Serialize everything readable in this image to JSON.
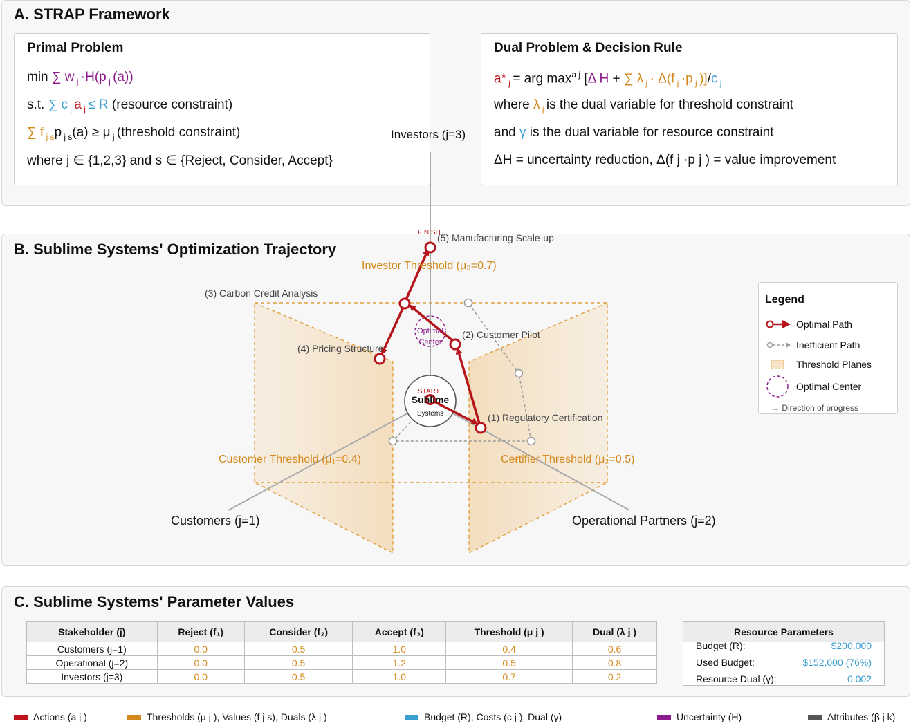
{
  "sectionA": {
    "title": "A. STRAP Framework",
    "primal": {
      "title": "Primal Problem",
      "line1": {
        "a": "min ",
        "b": "∑ w",
        "c": " j ",
        "d": "·H(p",
        "e": " j ",
        "f": "(a))"
      },
      "line2": {
        "a": "s.t. ",
        "b": "∑ c",
        "c": " j ",
        "d": "a",
        "e": " j ",
        "f": " ≤ R",
        "g": " (resource constraint)"
      },
      "line3": {
        "a": "∑ f",
        "b": " j s",
        "c": "p",
        "d": " j s",
        "e": "(a) ≥ μ",
        "f": " j ",
        "g": " (threshold constraint)"
      },
      "line4": "where j ∈ {1,2,3} and s ∈ {Reject, Consider, Accept}"
    },
    "dual": {
      "title": "Dual Problem & Decision Rule",
      "line1": {
        "a": "a*",
        "b": " j ",
        "c": " = arg max",
        "d": "a j",
        "e": " [",
        "f": "Δ H",
        "g": " + ",
        "h": "∑ λ",
        "i": " j ",
        "j": " · Δ(f",
        "k": " j ",
        "l": "·p",
        "m": " j ",
        "n": ")]",
        "o": "/",
        "p": "c",
        "q": " j"
      },
      "line2": {
        "a": "where ",
        "b": "λ",
        "c": " j ",
        "d": " is the dual variable for threshold constraint"
      },
      "line3": {
        "a": "and ",
        "b": "γ",
        "c": " is the dual variable for resource constraint"
      },
      "line4": "ΔH = uncertainty reduction, Δ(f j ·p j ) = value improvement"
    }
  },
  "sectionB": {
    "title": "B. Sublime Systems' Optimization Trajectory",
    "axes": {
      "investors": "Investors (j=3)",
      "customers": "Customers (j=1)",
      "partners": "Operational Partners (j=2)"
    },
    "thresholds": {
      "investor": "Investor Threshold (μ₃=0.7)",
      "customer": "Customer Threshold (μ₁=0.4)",
      "certifier": "Certifier Threshold (μ₂=0.5)"
    },
    "center": {
      "line1": "Sublime",
      "line2": "Systems",
      "start": "START"
    },
    "finish": "FINISH",
    "optimal_center": {
      "line1": "Optimal",
      "line2": "Center"
    },
    "steps": {
      "s1": "(1) Regulatory Certification",
      "s2": "(2) Customer Pilot",
      "s3": "(3) Carbon Credit Analysis",
      "s4": "(4) Pricing Structure",
      "s5": "(5) Manufacturing Scale-up"
    },
    "legend": {
      "title": "Legend",
      "optimal": "Optimal Path",
      "inefficient": "Inefficient Path",
      "planes": "Threshold Planes",
      "center": "Optimal Center",
      "direction": "→ Direction of progress"
    }
  },
  "sectionC": {
    "title": "C. Sublime Systems' Parameter Values",
    "headers": [
      "Stakeholder (j)",
      "Reject (f₁)",
      "Consider (f₂)",
      "Accept (f₃)",
      "Threshold (μ j )",
      "Dual (λ j )"
    ],
    "rows": [
      [
        "Customers (j=1)",
        "0.0",
        "0.5",
        "1.0",
        "0.4",
        "0.6"
      ],
      [
        "Operational (j=2)",
        "0.0",
        "0.5",
        "1.2",
        "0.5",
        "0.8"
      ],
      [
        "Investors (j=3)",
        "0.0",
        "0.5",
        "1.0",
        "0.7",
        "0.2"
      ]
    ],
    "resources": {
      "title": "Resource Parameters",
      "budget_label": "Budget (R):",
      "budget_value": "$200,000",
      "used_label": "Used Budget:",
      "used_value": "$152,000 (76%)",
      "dual_label": "Resource Dual (γ):",
      "dual_value": "0.002"
    }
  },
  "color_legend": {
    "actions": "Actions (a j )",
    "thresholds": "Thresholds (μ j ), Values (f j s), Duals (λ j )",
    "budget": "Budget (R), Costs (c j ), Dual (γ)",
    "uncertainty": "Uncertainty (H)",
    "attributes": "Attributes (β j k)"
  },
  "colors": {
    "red": "#c0141c",
    "orange": "#d4891c",
    "blue": "#3a9fd0",
    "purple": "#8b1a8b",
    "gray": "#555555"
  }
}
